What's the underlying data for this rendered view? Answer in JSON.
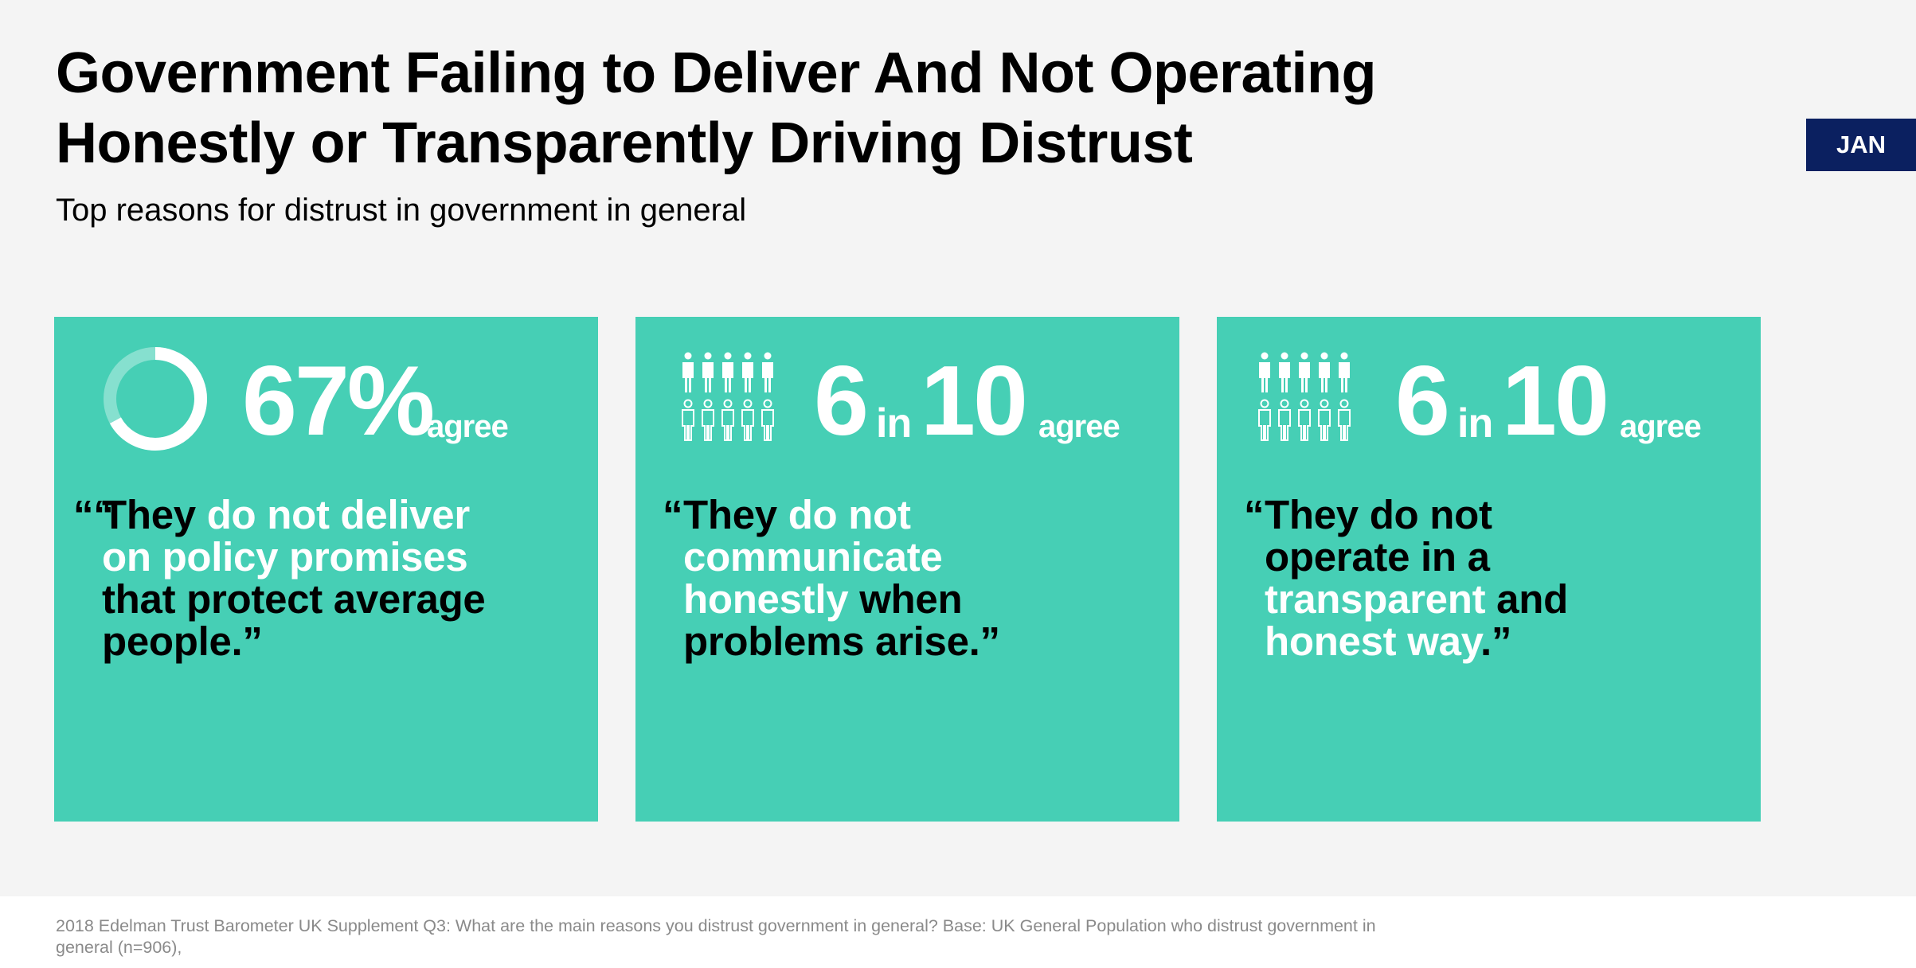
{
  "header": {
    "title_line1": "Government Failing to Deliver And Not Operating",
    "title_line2": "Honestly or Transparently Driving Distrust",
    "subtitle": "Top reasons for distrust in government in general",
    "badge": "JAN"
  },
  "colors": {
    "card": "#46cfb5",
    "badge": "#0b2060",
    "highlight": "#ffffff"
  },
  "cards": [
    {
      "icon": "donut-ring-icon",
      "stat_value": "67%",
      "stat_suffix": "agree",
      "agree_fraction": 0.67,
      "quote_mark": "““",
      "quote_parts": [
        {
          "text": "They ",
          "highlight": false
        },
        {
          "text": "do not deliver",
          "highlight": true
        },
        {
          "text": "on policy promises",
          "highlight": true
        },
        {
          "text": "that protect average",
          "highlight": false
        },
        {
          "text": "people.”",
          "highlight": false
        }
      ]
    },
    {
      "icon": "people-grid-icon",
      "stat_num": "6",
      "stat_in": "in",
      "stat_den": "10",
      "stat_suffix": "agree",
      "quote_mark": "“",
      "quote_parts": [
        {
          "text": "They ",
          "highlight": false
        },
        {
          "text": "do not",
          "highlight": true
        },
        {
          "text": "communicate",
          "highlight": true
        },
        {
          "text": "honestly ",
          "highlight": true
        },
        {
          "text": "when",
          "highlight": false
        },
        {
          "text": "problems arise.”",
          "highlight": false
        }
      ]
    },
    {
      "icon": "people-grid-icon",
      "stat_num": "6",
      "stat_in": "in",
      "stat_den": "10",
      "stat_suffix": "agree",
      "quote_mark": "“",
      "quote_parts": [
        {
          "text": "They do not",
          "highlight": false
        },
        {
          "text": "operate in a",
          "highlight": false
        },
        {
          "text": "transparent ",
          "highlight": true
        },
        {
          "text": "and",
          "highlight": false
        },
        {
          "text": "honest way",
          "highlight": true
        },
        {
          "text": ".”",
          "highlight": false
        }
      ]
    }
  ],
  "footer": {
    "source": "2018 Edelman Trust Barometer UK Supplement Q3: What are the main reasons you distrust government in general? Base: UK General Population who distrust government in general (n=906),"
  }
}
